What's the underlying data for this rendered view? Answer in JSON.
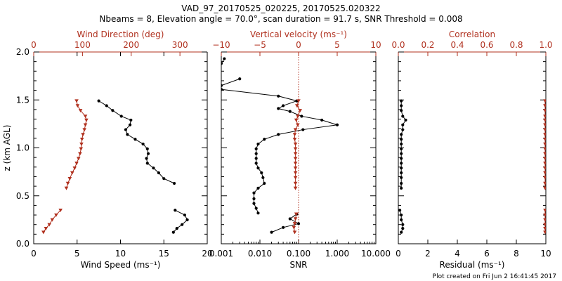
{
  "header": {
    "title": "VAD_97_20170525_020225, 20170525.020322",
    "subtitle": "Nbeams = 8, Elevation angle = 70.0°, scan duration = 91.7 s, SNR Threshold = 0.008"
  },
  "footer": {
    "plot_created": "Plot created on Fri Jun  2 16:41:45 2017"
  },
  "colors": {
    "black": "#000000",
    "red": "#b0301e"
  },
  "chart_data": [
    {
      "type": "line",
      "panel": "wind",
      "ylabel": "z (km AGL)",
      "ylim": [
        0,
        2
      ],
      "yticks": [
        "0.0",
        "0.5",
        "1.0",
        "1.5",
        "2.0"
      ],
      "bottom_axis": {
        "label": "Wind Speed (ms⁻¹)",
        "lim": [
          0,
          20
        ],
        "ticks": [
          "0",
          "5",
          "10",
          "15",
          "20"
        ]
      },
      "top_axis": {
        "label": "Wind Direction (deg)",
        "lim": [
          0,
          356
        ],
        "ticks": [
          "0",
          "100",
          "200",
          "300"
        ],
        "tick_values": [
          0,
          100,
          200,
          300
        ]
      },
      "series": [
        {
          "color": "#000000",
          "marker": "circle",
          "axis": "bottom",
          "segments": [
            [
              [
                7.5,
                1.49
              ],
              [
                8.4,
                1.44
              ],
              [
                9.1,
                1.39
              ],
              [
                10.1,
                1.33
              ],
              [
                11.2,
                1.29
              ],
              [
                11.1,
                1.24
              ],
              [
                10.6,
                1.19
              ],
              [
                10.8,
                1.14
              ],
              [
                11.7,
                1.09
              ],
              [
                12.6,
                1.04
              ],
              [
                13.1,
                0.99
              ],
              [
                13.2,
                0.94
              ],
              [
                13.0,
                0.89
              ],
              [
                13.1,
                0.84
              ],
              [
                13.8,
                0.79
              ],
              [
                14.4,
                0.74
              ],
              [
                15.0,
                0.68
              ],
              [
                16.2,
                0.63
              ]
            ],
            [
              [
                16.3,
                0.35
              ],
              [
                17.4,
                0.3
              ],
              [
                17.7,
                0.25
              ],
              [
                17.1,
                0.2
              ],
              [
                16.5,
                0.16
              ],
              [
                16.1,
                0.12
              ]
            ]
          ]
        },
        {
          "color": "#b0301e",
          "marker": "triangle",
          "axis": "top",
          "segments": [
            [
              [
                88,
                1.49
              ],
              [
                90,
                1.44
              ],
              [
                96,
                1.39
              ],
              [
                106,
                1.33
              ],
              [
                108,
                1.29
              ],
              [
                106,
                1.24
              ],
              [
                104,
                1.19
              ],
              [
                101,
                1.14
              ],
              [
                99,
                1.09
              ],
              [
                98,
                1.04
              ],
              [
                97,
                0.99
              ],
              [
                95,
                0.94
              ],
              [
                92,
                0.89
              ],
              [
                88,
                0.84
              ],
              [
                84,
                0.79
              ],
              [
                79,
                0.74
              ],
              [
                74,
                0.68
              ],
              [
                70,
                0.63
              ],
              [
                67,
                0.58
              ]
            ],
            [
              [
                55,
                0.35
              ],
              [
                46,
                0.3
              ],
              [
                38,
                0.25
              ],
              [
                32,
                0.2
              ],
              [
                25,
                0.16
              ],
              [
                20,
                0.12
              ]
            ]
          ]
        }
      ]
    },
    {
      "type": "line",
      "panel": "snr",
      "ylim": [
        0,
        2
      ],
      "bottom_axis": {
        "label": "SNR",
        "scale": "log",
        "lim": [
          0.001,
          10
        ],
        "ticks": [
          "0.001",
          "0.010",
          "0.100",
          "1.000",
          "10.000"
        ],
        "tick_values": [
          0.001,
          0.01,
          0.1,
          1,
          10
        ]
      },
      "top_axis": {
        "label": "Vertical velocity (ms⁻¹)",
        "lim": [
          -10,
          10
        ],
        "ticks": [
          "−10",
          "−5",
          "0",
          "5",
          "10"
        ],
        "tick_values": [
          -10,
          -5,
          0,
          5,
          10
        ]
      },
      "reference_line": {
        "axis": "top",
        "value": 0,
        "style": "dotted",
        "color": "#b0301e"
      },
      "series": [
        {
          "color": "#000000",
          "marker": "circle",
          "axis": "bottom",
          "segments": [
            [
              [
                0.0012,
                1.93
              ],
              [
                0.001,
                1.88
              ]
            ],
            [
              [
                0.001,
                1.65
              ],
              [
                0.003,
                1.72
              ]
            ],
            [
              [
                0.001,
                1.61
              ],
              [
                0.03,
                1.54
              ],
              [
                0.09,
                1.49
              ],
              [
                0.04,
                1.44
              ],
              [
                0.03,
                1.41
              ],
              [
                0.06,
                1.38
              ],
              [
                0.12,
                1.33
              ],
              [
                0.4,
                1.29
              ],
              [
                1.0,
                1.24
              ],
              [
                0.13,
                1.19
              ],
              [
                0.03,
                1.14
              ],
              [
                0.013,
                1.09
              ],
              [
                0.009,
                1.04
              ],
              [
                0.008,
                0.99
              ],
              [
                0.008,
                0.94
              ],
              [
                0.008,
                0.89
              ],
              [
                0.008,
                0.84
              ],
              [
                0.009,
                0.79
              ],
              [
                0.011,
                0.74
              ],
              [
                0.012,
                0.69
              ],
              [
                0.013,
                0.63
              ],
              [
                0.009,
                0.58
              ],
              [
                0.007,
                0.53
              ],
              [
                0.007,
                0.47
              ],
              [
                0.007,
                0.42
              ],
              [
                0.008,
                0.37
              ],
              [
                0.009,
                0.32
              ]
            ],
            [
              [
                0.09,
                0.31
              ],
              [
                0.06,
                0.26
              ],
              [
                0.1,
                0.21
              ],
              [
                0.04,
                0.17
              ],
              [
                0.02,
                0.12
              ]
            ]
          ]
        },
        {
          "color": "#b0301e",
          "marker": "triangle",
          "axis": "top",
          "segments": [
            [
              [
                0.0,
                1.49
              ],
              [
                -0.2,
                1.44
              ],
              [
                0.2,
                1.39
              ],
              [
                -0.1,
                1.33
              ],
              [
                -0.3,
                1.29
              ],
              [
                -0.1,
                1.24
              ],
              [
                -0.4,
                1.19
              ],
              [
                -0.5,
                1.14
              ],
              [
                -0.5,
                1.09
              ],
              [
                -0.4,
                1.04
              ],
              [
                -0.4,
                0.99
              ],
              [
                -0.4,
                0.94
              ],
              [
                -0.4,
                0.89
              ],
              [
                -0.4,
                0.84
              ],
              [
                -0.4,
                0.79
              ],
              [
                -0.4,
                0.74
              ],
              [
                -0.4,
                0.69
              ],
              [
                -0.4,
                0.63
              ],
              [
                -0.4,
                0.58
              ]
            ],
            [
              [
                -0.3,
                0.31
              ],
              [
                -0.4,
                0.26
              ],
              [
                -0.5,
                0.21
              ],
              [
                -0.6,
                0.17
              ],
              [
                -0.5,
                0.12
              ]
            ]
          ]
        }
      ]
    },
    {
      "type": "line",
      "panel": "correlation",
      "ylim": [
        0,
        2
      ],
      "bottom_axis": {
        "label": "Residual (ms⁻¹)",
        "lim": [
          0,
          10
        ],
        "ticks": [
          "0",
          "2",
          "4",
          "6",
          "8",
          "10"
        ]
      },
      "top_axis": {
        "label": "Correlation",
        "lim": [
          0,
          1
        ],
        "ticks": [
          "0.0",
          "0.2",
          "0.4",
          "0.6",
          "0.8",
          "1.0"
        ],
        "tick_values": [
          0,
          0.2,
          0.4,
          0.6,
          0.8,
          1.0
        ]
      },
      "series": [
        {
          "color": "#000000",
          "marker": "circle",
          "axis": "bottom",
          "segments": [
            [
              [
                0.2,
                1.49
              ],
              [
                0.2,
                1.44
              ],
              [
                0.2,
                1.39
              ],
              [
                0.3,
                1.33
              ],
              [
                0.5,
                1.29
              ],
              [
                0.3,
                1.24
              ],
              [
                0.3,
                1.19
              ],
              [
                0.2,
                1.14
              ],
              [
                0.2,
                1.09
              ],
              [
                0.2,
                1.04
              ],
              [
                0.2,
                0.99
              ],
              [
                0.2,
                0.94
              ],
              [
                0.2,
                0.89
              ],
              [
                0.2,
                0.84
              ],
              [
                0.2,
                0.79
              ],
              [
                0.2,
                0.74
              ],
              [
                0.2,
                0.69
              ],
              [
                0.2,
                0.63
              ],
              [
                0.2,
                0.58
              ]
            ],
            [
              [
                0.1,
                0.35
              ],
              [
                0.2,
                0.3
              ],
              [
                0.2,
                0.25
              ],
              [
                0.3,
                0.2
              ],
              [
                0.3,
                0.16
              ],
              [
                0.2,
                0.12
              ]
            ]
          ]
        },
        {
          "color": "#b0301e",
          "marker": "triangle",
          "axis": "top",
          "segments": [
            [
              [
                0.995,
                1.49
              ],
              [
                0.995,
                1.44
              ],
              [
                0.995,
                1.39
              ],
              [
                0.995,
                1.33
              ],
              [
                0.995,
                1.29
              ],
              [
                0.995,
                1.24
              ],
              [
                0.995,
                1.19
              ],
              [
                0.995,
                1.14
              ],
              [
                0.995,
                1.09
              ],
              [
                0.995,
                1.04
              ],
              [
                0.995,
                0.99
              ],
              [
                0.995,
                0.94
              ],
              [
                0.995,
                0.89
              ],
              [
                0.995,
                0.84
              ],
              [
                0.995,
                0.79
              ],
              [
                0.995,
                0.74
              ],
              [
                0.995,
                0.69
              ],
              [
                0.995,
                0.63
              ],
              [
                0.995,
                0.58
              ]
            ],
            [
              [
                0.995,
                0.35
              ],
              [
                0.995,
                0.3
              ],
              [
                0.995,
                0.25
              ],
              [
                0.995,
                0.2
              ],
              [
                0.995,
                0.16
              ],
              [
                0.995,
                0.12
              ]
            ]
          ]
        }
      ]
    }
  ]
}
